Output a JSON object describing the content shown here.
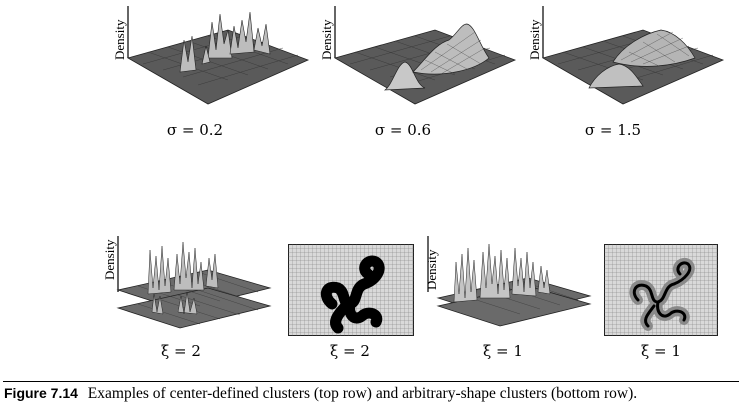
{
  "axis_label": "Density",
  "top_row": [
    {
      "param": "σ = 0.2"
    },
    {
      "param": "σ = 0.6"
    },
    {
      "param": "σ = 1.5"
    }
  ],
  "bottom_row": [
    {
      "param": "ξ = 2"
    },
    {
      "param": "ξ = 2"
    },
    {
      "param": "ξ = 1"
    },
    {
      "param": "ξ = 1"
    }
  ],
  "caption": {
    "label": "Figure 7.14",
    "text": "Examples of center-defined clusters (top row) and arbitrary-shape clusters (bottom row)."
  }
}
